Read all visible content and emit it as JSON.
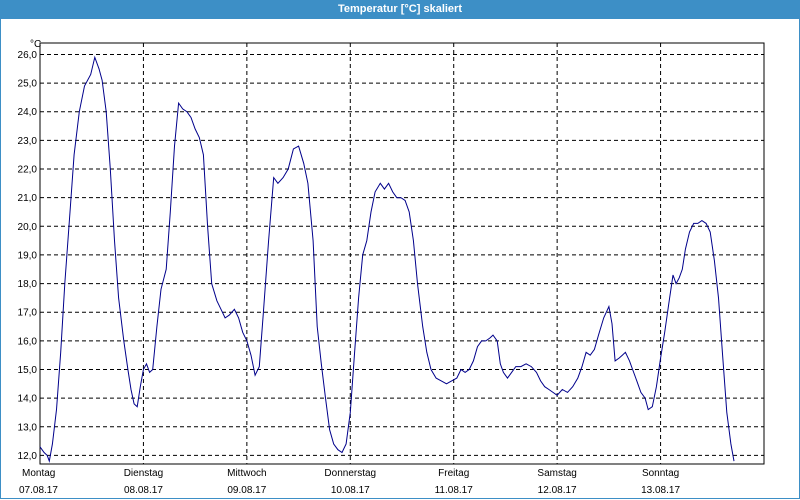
{
  "window": {
    "title": "Temperatur [°C] skaliert"
  },
  "chart_data": {
    "type": "line",
    "title": "Temperatur [°C] skaliert",
    "ylabel": "°C",
    "ylim": [
      11.7,
      26.4
    ],
    "yticks": [
      12.0,
      13.0,
      14.0,
      15.0,
      16.0,
      17.0,
      18.0,
      19.0,
      20.0,
      21.0,
      22.0,
      23.0,
      24.0,
      25.0,
      26.0
    ],
    "ytick_labels": [
      "12,0",
      "13,0",
      "14,0",
      "15,0",
      "16,0",
      "17,0",
      "18,0",
      "19,0",
      "20,0",
      "21,0",
      "22,0",
      "23,0",
      "24,0",
      "25,0",
      "26,0"
    ],
    "xlim": [
      0,
      7
    ],
    "xticks": [
      {
        "pos": 0,
        "day": "Montag",
        "date": "07.08.17"
      },
      {
        "pos": 1,
        "day": "Dienstag",
        "date": "08.08.17"
      },
      {
        "pos": 2,
        "day": "Mittwoch",
        "date": "09.08.17"
      },
      {
        "pos": 3,
        "day": "Donnerstag",
        "date": "10.08.17"
      },
      {
        "pos": 4,
        "day": "Freitag",
        "date": "11.08.17"
      },
      {
        "pos": 5,
        "day": "Samstag",
        "date": "12.08.17"
      },
      {
        "pos": 6,
        "day": "Sonntag",
        "date": "13.08.17"
      }
    ],
    "grid": true,
    "line_color": "#00008b",
    "series": [
      {
        "points": [
          [
            0.0,
            12.3
          ],
          [
            0.04,
            12.1
          ],
          [
            0.07,
            12.0
          ],
          [
            0.09,
            11.8
          ],
          [
            0.12,
            12.4
          ],
          [
            0.16,
            13.6
          ],
          [
            0.2,
            15.6
          ],
          [
            0.24,
            18.0
          ],
          [
            0.29,
            20.5
          ],
          [
            0.33,
            22.5
          ],
          [
            0.38,
            24.0
          ],
          [
            0.43,
            24.9
          ],
          [
            0.49,
            25.3
          ],
          [
            0.53,
            25.9
          ],
          [
            0.57,
            25.5
          ],
          [
            0.6,
            25.1
          ],
          [
            0.64,
            24.0
          ],
          [
            0.68,
            22.0
          ],
          [
            0.72,
            19.5
          ],
          [
            0.76,
            17.5
          ],
          [
            0.81,
            16.0
          ],
          [
            0.85,
            15.0
          ],
          [
            0.88,
            14.3
          ],
          [
            0.91,
            13.8
          ],
          [
            0.94,
            13.7
          ],
          [
            0.97,
            14.4
          ],
          [
            1.0,
            15.0
          ],
          [
            1.03,
            15.2
          ],
          [
            1.06,
            14.9
          ],
          [
            1.09,
            15.0
          ],
          [
            1.13,
            16.5
          ],
          [
            1.17,
            17.8
          ],
          [
            1.22,
            18.5
          ],
          [
            1.26,
            20.5
          ],
          [
            1.3,
            22.8
          ],
          [
            1.34,
            24.3
          ],
          [
            1.38,
            24.1
          ],
          [
            1.42,
            24.0
          ],
          [
            1.46,
            23.8
          ],
          [
            1.5,
            23.4
          ],
          [
            1.54,
            23.1
          ],
          [
            1.58,
            22.5
          ],
          [
            1.62,
            20.0
          ],
          [
            1.66,
            18.0
          ],
          [
            1.71,
            17.4
          ],
          [
            1.75,
            17.1
          ],
          [
            1.79,
            16.8
          ],
          [
            1.83,
            16.9
          ],
          [
            1.88,
            17.1
          ],
          [
            1.92,
            16.8
          ],
          [
            1.96,
            16.3
          ],
          [
            2.0,
            16.0
          ],
          [
            2.04,
            15.5
          ],
          [
            2.08,
            14.8
          ],
          [
            2.12,
            15.1
          ],
          [
            2.16,
            17.0
          ],
          [
            2.21,
            19.5
          ],
          [
            2.26,
            21.7
          ],
          [
            2.3,
            21.5
          ],
          [
            2.35,
            21.7
          ],
          [
            2.4,
            22.0
          ],
          [
            2.45,
            22.7
          ],
          [
            2.5,
            22.8
          ],
          [
            2.55,
            22.2
          ],
          [
            2.59,
            21.5
          ],
          [
            2.64,
            19.5
          ],
          [
            2.68,
            16.5
          ],
          [
            2.72,
            15.2
          ],
          [
            2.76,
            14.0
          ],
          [
            2.8,
            12.9
          ],
          [
            2.84,
            12.4
          ],
          [
            2.88,
            12.2
          ],
          [
            2.92,
            12.1
          ],
          [
            2.96,
            12.4
          ],
          [
            3.0,
            13.5
          ],
          [
            3.04,
            15.5
          ],
          [
            3.08,
            17.5
          ],
          [
            3.12,
            19.0
          ],
          [
            3.16,
            19.5
          ],
          [
            3.2,
            20.5
          ],
          [
            3.24,
            21.2
          ],
          [
            3.29,
            21.5
          ],
          [
            3.33,
            21.3
          ],
          [
            3.37,
            21.5
          ],
          [
            3.41,
            21.2
          ],
          [
            3.45,
            21.0
          ],
          [
            3.49,
            21.0
          ],
          [
            3.53,
            20.9
          ],
          [
            3.57,
            20.5
          ],
          [
            3.61,
            19.5
          ],
          [
            3.65,
            18.0
          ],
          [
            3.7,
            16.5
          ],
          [
            3.74,
            15.6
          ],
          [
            3.78,
            15.0
          ],
          [
            3.83,
            14.7
          ],
          [
            3.88,
            14.6
          ],
          [
            3.93,
            14.5
          ],
          [
            3.98,
            14.6
          ],
          [
            4.03,
            14.7
          ],
          [
            4.07,
            15.0
          ],
          [
            4.11,
            14.9
          ],
          [
            4.15,
            15.0
          ],
          [
            4.19,
            15.3
          ],
          [
            4.23,
            15.8
          ],
          [
            4.27,
            16.0
          ],
          [
            4.31,
            16.0
          ],
          [
            4.35,
            16.1
          ],
          [
            4.38,
            16.2
          ],
          [
            4.42,
            16.0
          ],
          [
            4.45,
            15.2
          ],
          [
            4.48,
            14.9
          ],
          [
            4.52,
            14.7
          ],
          [
            4.56,
            14.9
          ],
          [
            4.6,
            15.1
          ],
          [
            4.65,
            15.1
          ],
          [
            4.7,
            15.2
          ],
          [
            4.75,
            15.1
          ],
          [
            4.8,
            14.9
          ],
          [
            4.84,
            14.6
          ],
          [
            4.88,
            14.4
          ],
          [
            4.92,
            14.3
          ],
          [
            4.96,
            14.2
          ],
          [
            5.0,
            14.1
          ],
          [
            5.05,
            14.3
          ],
          [
            5.1,
            14.2
          ],
          [
            5.15,
            14.4
          ],
          [
            5.2,
            14.7
          ],
          [
            5.24,
            15.1
          ],
          [
            5.28,
            15.6
          ],
          [
            5.32,
            15.5
          ],
          [
            5.36,
            15.7
          ],
          [
            5.4,
            16.2
          ],
          [
            5.45,
            16.8
          ],
          [
            5.5,
            17.2
          ],
          [
            5.53,
            16.6
          ],
          [
            5.56,
            15.3
          ],
          [
            5.6,
            15.4
          ],
          [
            5.63,
            15.5
          ],
          [
            5.66,
            15.6
          ],
          [
            5.7,
            15.3
          ],
          [
            5.73,
            15.0
          ],
          [
            5.77,
            14.6
          ],
          [
            5.81,
            14.2
          ],
          [
            5.85,
            14.0
          ],
          [
            5.88,
            13.6
          ],
          [
            5.92,
            13.7
          ],
          [
            5.96,
            14.4
          ],
          [
            6.0,
            15.4
          ],
          [
            6.04,
            16.3
          ],
          [
            6.08,
            17.3
          ],
          [
            6.12,
            18.3
          ],
          [
            6.15,
            18.0
          ],
          [
            6.18,
            18.2
          ],
          [
            6.21,
            18.5
          ],
          [
            6.24,
            19.2
          ],
          [
            6.28,
            19.8
          ],
          [
            6.32,
            20.1
          ],
          [
            6.36,
            20.1
          ],
          [
            6.4,
            20.2
          ],
          [
            6.44,
            20.1
          ],
          [
            6.48,
            19.8
          ],
          [
            6.52,
            18.8
          ],
          [
            6.56,
            17.5
          ],
          [
            6.6,
            15.5
          ],
          [
            6.64,
            13.5
          ],
          [
            6.68,
            12.4
          ],
          [
            6.71,
            11.8
          ]
        ]
      }
    ]
  }
}
